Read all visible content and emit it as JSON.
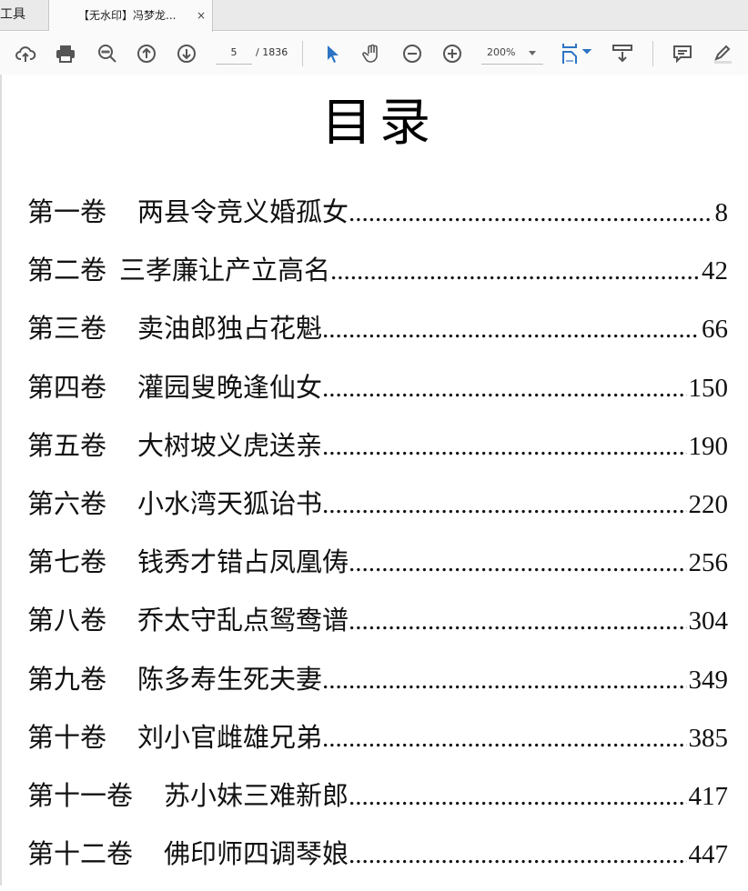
{
  "tabs": {
    "tools": "工具",
    "document": "【无水印】冯梦龙...",
    "close": "×"
  },
  "toolbar": {
    "page_current": "5",
    "page_total": "/ 1836",
    "zoom": "200%",
    "accent": "#2d74c4"
  },
  "page": {
    "title": "目录",
    "entries": [
      {
        "label": "第一卷",
        "title": "两县令竞义婚孤女",
        "page": "8"
      },
      {
        "label": "第二卷",
        "title": "三孝廉让产立高名",
        "page": "42"
      },
      {
        "label": "第三卷",
        "title": "卖油郎独占花魁",
        "page": "66"
      },
      {
        "label": "第四卷",
        "title": "灌园叟晚逢仙女",
        "page": "150"
      },
      {
        "label": "第五卷",
        "title": "大树坡义虎送亲",
        "page": "190"
      },
      {
        "label": "第六卷",
        "title": "小水湾天狐诒书",
        "page": "220"
      },
      {
        "label": "第七卷",
        "title": "钱秀才错占凤凰俦",
        "page": "256"
      },
      {
        "label": "第八卷",
        "title": "乔太守乱点鸳鸯谱",
        "page": "304"
      },
      {
        "label": "第九卷",
        "title": "陈多寿生死夫妻",
        "page": "349"
      },
      {
        "label": "第十卷",
        "title": "刘小官雌雄兄弟",
        "page": "385"
      },
      {
        "label": "第十一卷",
        "title": "苏小妹三难新郎",
        "page": "417"
      },
      {
        "label": "第十二卷",
        "title": "佛印师四调琴娘",
        "page": "447"
      }
    ]
  }
}
